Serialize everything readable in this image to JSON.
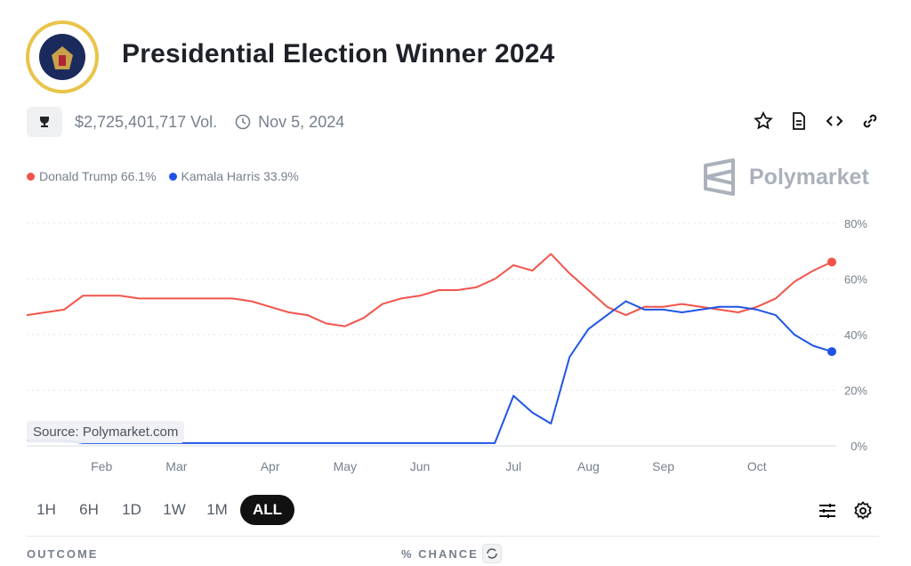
{
  "header": {
    "title": "Presidential Election Winner 2024",
    "volume": "$2,725,401,717 Vol.",
    "end_date": "Nov 5, 2024"
  },
  "brand": "Polymarket",
  "source": "Source: Polymarket.com",
  "chart_data": {
    "type": "line",
    "categories": [
      null,
      null,
      null,
      null,
      "Feb",
      null,
      null,
      null,
      "Mar",
      null,
      null,
      null,
      null,
      "Apr",
      null,
      null,
      null,
      "May",
      null,
      null,
      null,
      "Jun",
      null,
      null,
      null,
      null,
      "Jul",
      null,
      null,
      null,
      "Aug",
      null,
      null,
      null,
      "Sep",
      null,
      null,
      null,
      null,
      "Oct",
      null,
      null,
      null,
      null
    ],
    "series": [
      {
        "name": "Donald Trump",
        "color": "#f2544b",
        "end_label": "66.1%",
        "values": [
          47,
          48,
          49,
          54,
          54,
          54,
          53,
          53,
          53,
          53,
          53,
          53,
          52,
          50,
          48,
          47,
          44,
          43,
          46,
          51,
          53,
          54,
          56,
          56,
          57,
          60,
          65,
          63,
          69,
          62,
          56,
          50,
          47,
          50,
          50,
          51,
          50,
          49,
          48,
          50,
          53,
          59,
          63,
          66.1
        ]
      },
      {
        "name": "Kamala Harris",
        "color": "#1f55e6",
        "end_label": "33.9%",
        "values": [
          2,
          2,
          2,
          1,
          1,
          1,
          1,
          1,
          1,
          1,
          1,
          1,
          1,
          1,
          1,
          1,
          1,
          1,
          1,
          1,
          1,
          1,
          1,
          1,
          1,
          1,
          18,
          12,
          8,
          32,
          42,
          47,
          52,
          49,
          49,
          48,
          49,
          50,
          50,
          49,
          47,
          40,
          36,
          33.9
        ]
      }
    ],
    "ylim": [
      0,
      80
    ],
    "yticks": [
      {
        "value": 0,
        "label": "0%"
      },
      {
        "value": 20,
        "label": "20%"
      },
      {
        "value": 40,
        "label": "40%"
      },
      {
        "value": 60,
        "label": "60%"
      },
      {
        "value": 80,
        "label": "80%"
      }
    ],
    "grid": true
  },
  "ranges": [
    "1H",
    "6H",
    "1D",
    "1W",
    "1M",
    "ALL"
  ],
  "table_header": {
    "outcome": "OUTCOME",
    "chance": "% CHANCE"
  }
}
